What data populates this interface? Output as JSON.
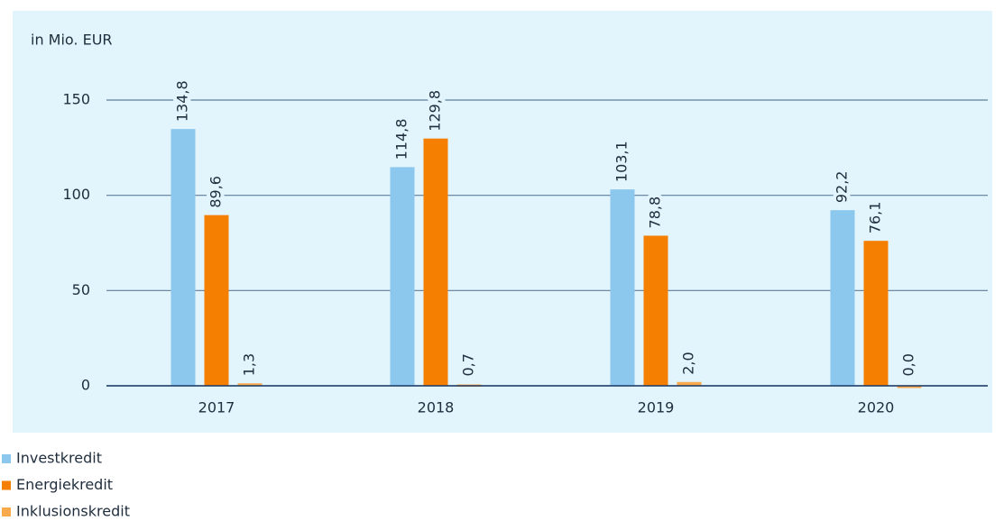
{
  "chart_data": {
    "type": "bar",
    "y_axis_label": "in Mio. EUR",
    "categories": [
      "2017",
      "2018",
      "2019",
      "2020"
    ],
    "series": [
      {
        "name": "Investkredit",
        "color": "#8cc8ee",
        "values": [
          134.8,
          114.8,
          103.1,
          92.2
        ],
        "value_labels": [
          "134,8",
          "114,8",
          "103,1",
          "92,2"
        ]
      },
      {
        "name": "Energiekredit",
        "color": "#f57f00",
        "values": [
          89.6,
          129.8,
          78.8,
          76.1
        ],
        "value_labels": [
          "89,6",
          "129,8",
          "78,8",
          "76,1"
        ]
      },
      {
        "name": "Inklusionskredit",
        "color": "#f9aa4c",
        "values": [
          1.3,
          0.7,
          2.0,
          0.0
        ],
        "value_labels": [
          "1,3",
          "0,7",
          "2,0",
          "0,0"
        ]
      }
    ],
    "ylim": [
      0,
      150
    ],
    "yticks": [
      0,
      50,
      100,
      150
    ],
    "grid": true
  }
}
